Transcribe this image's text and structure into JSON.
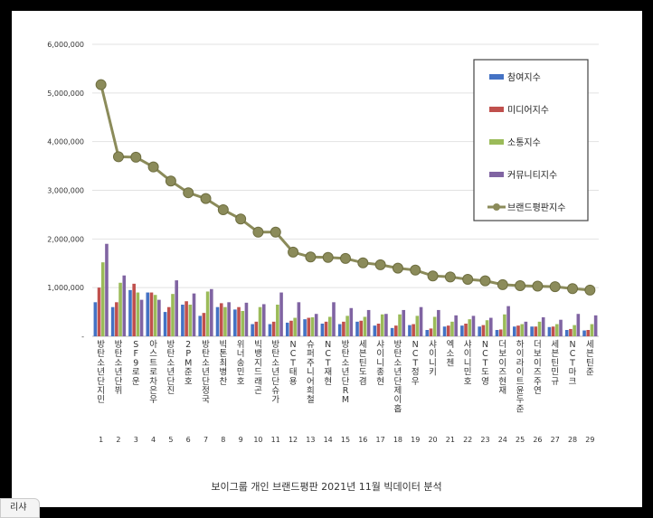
{
  "caption": "보이그룹 개인 브랜드평판   2021년 11월 빅데이터 분석",
  "corner_tab": "리샤",
  "chart_data": {
    "type": "bar",
    "title": "",
    "ylim": [
      0,
      6000000
    ],
    "yticks": [
      {
        "value": 0,
        "label": "-"
      },
      {
        "value": 1000000,
        "label": "1,000,000"
      },
      {
        "value": 2000000,
        "label": "2,000,000"
      },
      {
        "value": 3000000,
        "label": "3,000,000"
      },
      {
        "value": 4000000,
        "label": "4,000,000"
      },
      {
        "value": 5000000,
        "label": "5,000,000"
      },
      {
        "value": 6000000,
        "label": "6,000,000"
      }
    ],
    "grid": true,
    "legend_position": "top-right",
    "categories": [
      "방탄소년단 지민",
      "방탄소년단 뷔",
      "SF9 로운",
      "아스트로 차은우",
      "방탄소년단 진",
      "2PM 준호",
      "방탄소년단 정국",
      "빅톤 최병찬",
      "위너 송민호",
      "빅뱅 지드래곤",
      "방탄소년단 슈가",
      "NCT 태용",
      "슈퍼주니어 희철",
      "NCT 재현",
      "방탄소년단 RM",
      "세븐틴 도겸",
      "샤이니 종현",
      "방탄소년단 제이홉",
      "NCT 정우",
      "샤이니 키",
      "엑소 첸",
      "샤이니 민호",
      "NCT 도영",
      "더보이즈 현재",
      "하이라이트 윤두준",
      "더보이즈 주연",
      "세븐틴 민규",
      "NCT 마크",
      "세븐틴 준"
    ],
    "ranks": [
      "1",
      "2",
      "3",
      "4",
      "5",
      "6",
      "7",
      "8",
      "9",
      "10",
      "11",
      "12",
      "13",
      "14",
      "15",
      "16",
      "17",
      "18",
      "19",
      "20",
      "21",
      "22",
      "23",
      "24",
      "25",
      "26",
      "27",
      "28",
      "29"
    ],
    "series": [
      {
        "name": "참여지수",
        "kind": "bar",
        "color": "#4472c4",
        "values": [
          700000,
          600000,
          950000,
          900000,
          500000,
          650000,
          420000,
          600000,
          550000,
          250000,
          250000,
          280000,
          350000,
          260000,
          250000,
          300000,
          220000,
          170000,
          230000,
          130000,
          200000,
          220000,
          200000,
          130000,
          200000,
          200000,
          190000,
          130000,
          120000
        ]
      },
      {
        "name": "미디어지수",
        "kind": "bar",
        "color": "#c0504d",
        "values": [
          1000000,
          700000,
          1080000,
          900000,
          600000,
          720000,
          480000,
          680000,
          600000,
          300000,
          300000,
          320000,
          380000,
          300000,
          300000,
          320000,
          260000,
          220000,
          250000,
          160000,
          220000,
          260000,
          230000,
          140000,
          220000,
          200000,
          200000,
          150000,
          130000
        ]
      },
      {
        "name": "소통지수",
        "kind": "bar",
        "color": "#9bbb59",
        "values": [
          1520000,
          1100000,
          900000,
          850000,
          870000,
          650000,
          920000,
          600000,
          520000,
          600000,
          650000,
          380000,
          390000,
          400000,
          420000,
          400000,
          450000,
          450000,
          420000,
          400000,
          300000,
          350000,
          330000,
          450000,
          250000,
          300000,
          250000,
          230000,
          250000
        ]
      },
      {
        "name": "커뮤니티지수",
        "kind": "bar",
        "color": "#8064a2",
        "values": [
          1900000,
          1250000,
          750000,
          750000,
          1150000,
          880000,
          970000,
          700000,
          690000,
          660000,
          900000,
          700000,
          460000,
          700000,
          580000,
          540000,
          460000,
          540000,
          600000,
          540000,
          430000,
          420000,
          380000,
          620000,
          300000,
          390000,
          340000,
          460000,
          430000
        ]
      },
      {
        "name": "브랜드평판지수",
        "kind": "line",
        "color": "#8b8b5a",
        "values": [
          5170000,
          3690000,
          3680000,
          3480000,
          3190000,
          2950000,
          2830000,
          2600000,
          2410000,
          2140000,
          2140000,
          1730000,
          1630000,
          1620000,
          1600000,
          1510000,
          1470000,
          1400000,
          1360000,
          1240000,
          1220000,
          1170000,
          1140000,
          1060000,
          1040000,
          1030000,
          1020000,
          980000,
          950000
        ]
      }
    ]
  }
}
